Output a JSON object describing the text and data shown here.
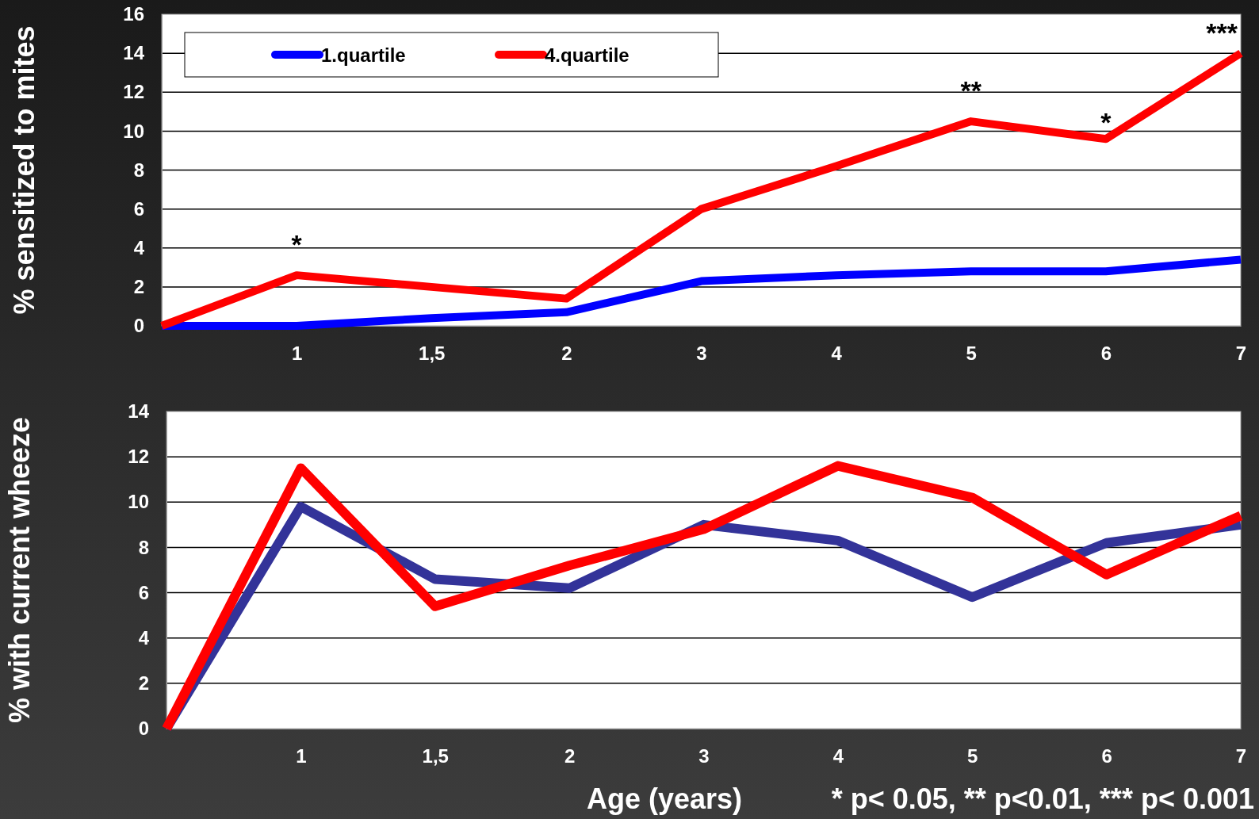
{
  "chart_data": [
    {
      "type": "line",
      "ylabel": "% sensitized to mites",
      "categories": [
        null,
        "1",
        "1,5",
        "2",
        "3",
        "4",
        "5",
        "6",
        "7"
      ],
      "series": [
        {
          "name": "1.quartile",
          "color": "#0000ff",
          "values": [
            0,
            0,
            0.4,
            0.7,
            2.3,
            2.6,
            2.8,
            2.8,
            3.4
          ]
        },
        {
          "name": "4.quartile",
          "color": "#ff0000",
          "values": [
            0,
            2.6,
            2.0,
            1.4,
            6.0,
            8.2,
            10.5,
            9.6,
            14.0
          ]
        }
      ],
      "ylim": [
        0,
        16
      ],
      "yticks": [
        0,
        2,
        4,
        6,
        8,
        10,
        12,
        14,
        16
      ],
      "grid": "y",
      "legend": "top left",
      "annotations": [
        {
          "text": "*",
          "x": "1",
          "y": 2.6
        },
        {
          "text": "**",
          "x": "5",
          "y": 10.5
        },
        {
          "text": "*",
          "x": "6",
          "y": 9.6
        },
        {
          "text": "***",
          "x": "7",
          "y": 14.0
        }
      ]
    },
    {
      "type": "line",
      "xlabel": "Age (years)",
      "ylabel": "% with current wheeze",
      "categories": [
        null,
        "1",
        "1,5",
        "2",
        "3",
        "4",
        "5",
        "6",
        "7"
      ],
      "series": [
        {
          "color": "#333399",
          "values": [
            0,
            9.8,
            6.6,
            6.2,
            9.0,
            8.3,
            5.8,
            8.2,
            9.0
          ]
        },
        {
          "color": "#ff0000",
          "values": [
            0,
            11.5,
            5.4,
            7.2,
            8.8,
            11.6,
            10.2,
            6.8,
            9.4
          ]
        }
      ],
      "ylim": [
        0,
        14
      ],
      "yticks": [
        0,
        2,
        4,
        6,
        8,
        10,
        12,
        14
      ],
      "grid": "y",
      "annotations": [
        "* p< 0.05, ** p<0.01, *** p< 0.001"
      ]
    }
  ]
}
